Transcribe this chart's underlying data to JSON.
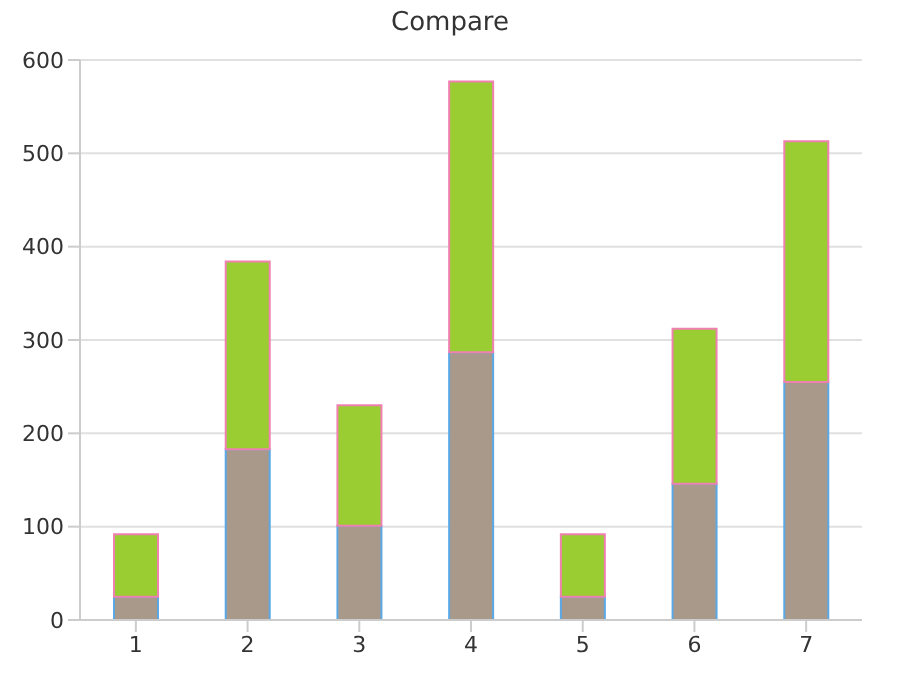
{
  "chart_data": {
    "type": "bar",
    "title": "Compare",
    "stacked": true,
    "categories": [
      "1",
      "2",
      "3",
      "4",
      "5",
      "6",
      "7"
    ],
    "series": [
      {
        "color": "#a8998a",
        "values": [
          25,
          183,
          101,
          287,
          25,
          146,
          255
        ]
      },
      {
        "color": "#9acd32",
        "values": [
          67,
          201,
          129,
          290,
          67,
          166,
          258
        ]
      }
    ],
    "ylim": [
      0,
      600
    ],
    "yticks": [
      0,
      100,
      200,
      300,
      400,
      500,
      600
    ],
    "grid": "y",
    "legend": false
  }
}
